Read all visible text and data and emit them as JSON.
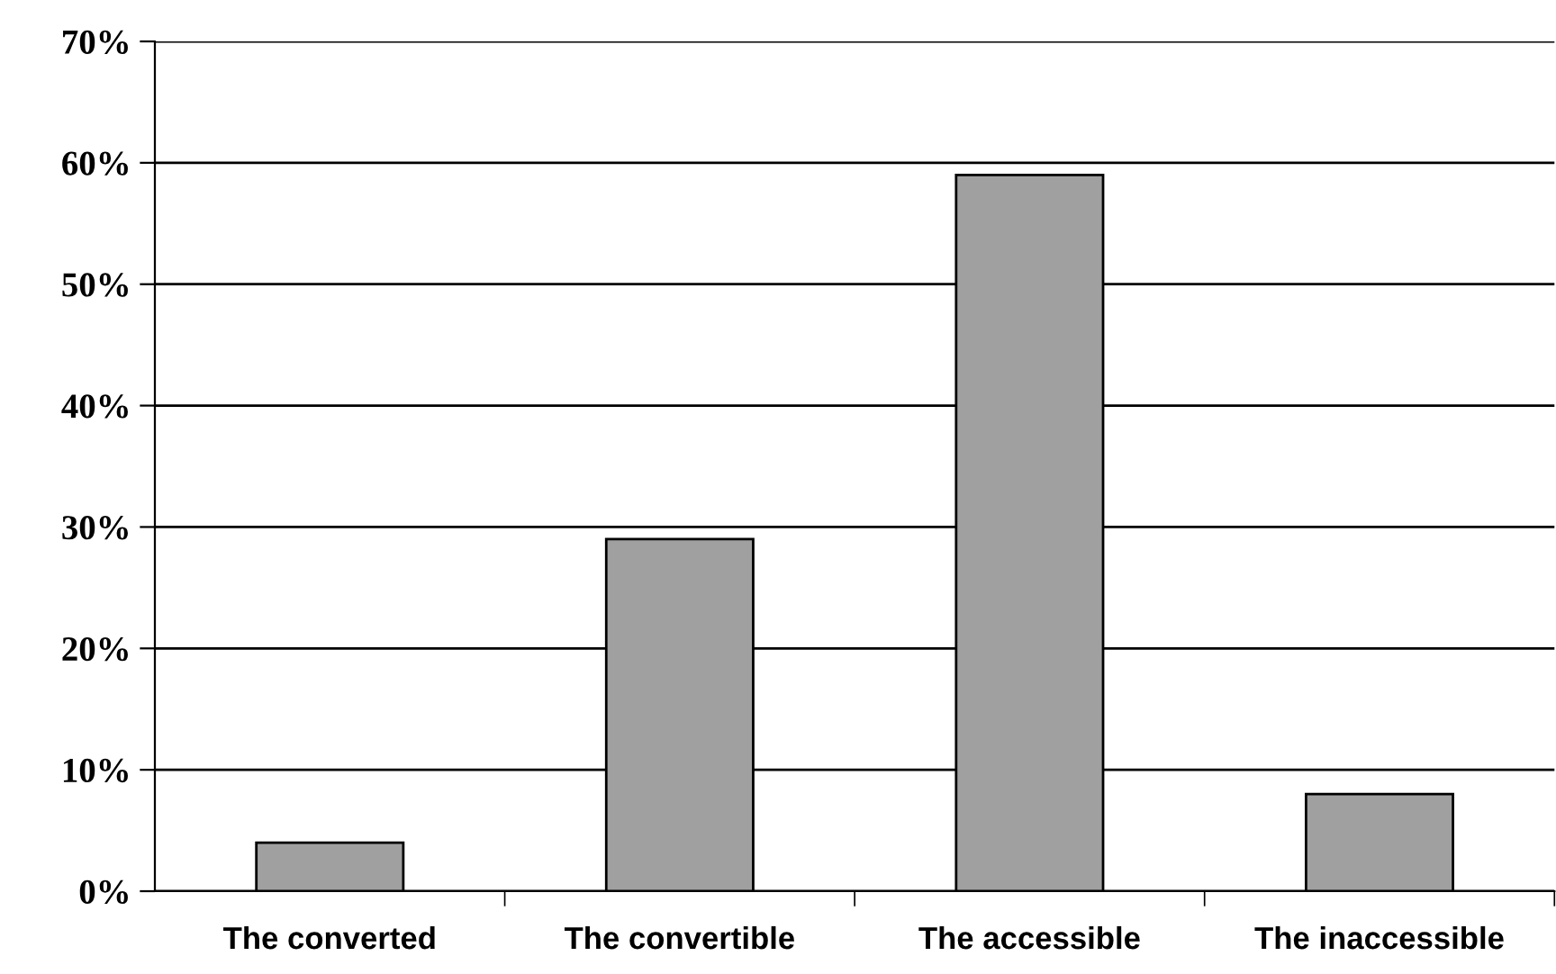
{
  "chart_data": {
    "type": "bar",
    "categories": [
      "The converted",
      "The convertible",
      "The accessible",
      "The inaccessible"
    ],
    "values": [
      4,
      29,
      59,
      8
    ],
    "color": "#a0a0a0",
    "ylim": [
      0,
      70
    ],
    "yticks": [
      {
        "value": 0,
        "label": "0%"
      },
      {
        "value": 10,
        "label": "10%"
      },
      {
        "value": 20,
        "label": "20%"
      },
      {
        "value": 30,
        "label": "30%"
      },
      {
        "value": 40,
        "label": "40%"
      },
      {
        "value": 50,
        "label": "50%"
      },
      {
        "value": 60,
        "label": "60%"
      },
      {
        "value": 70,
        "label": "70%"
      }
    ],
    "grid": "y",
    "legend": false
  }
}
